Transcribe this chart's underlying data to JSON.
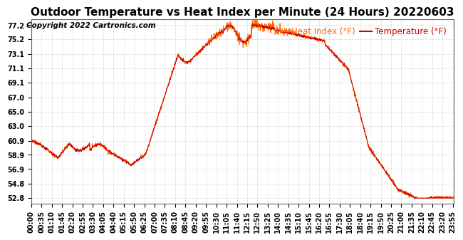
{
  "title": "Outdoor Temperature vs Heat Index per Minute (24 Hours) 20220603",
  "copyright": "Copyright 2022 Cartronics.com",
  "legend_heat_index": "Heat Index (°F)",
  "legend_temperature": "Temperature (°F)",
  "heat_index_color": "#ff6600",
  "line_color": "#cc0000",
  "background_color": "#ffffff",
  "grid_color": "#cccccc",
  "yticks": [
    52.8,
    54.8,
    56.9,
    58.9,
    60.9,
    63.0,
    65.0,
    67.0,
    69.1,
    71.1,
    73.1,
    75.2,
    77.2
  ],
  "ymin": 52.0,
  "ymax": 78.0,
  "title_fontsize": 11,
  "copyright_fontsize": 7.5,
  "legend_fontsize": 8.5,
  "tick_fontsize": 7,
  "xtick_labels": [
    "00:00",
    "00:35",
    "01:10",
    "01:45",
    "02:20",
    "02:55",
    "03:30",
    "04:05",
    "04:40",
    "05:15",
    "05:50",
    "06:25",
    "07:00",
    "07:35",
    "08:10",
    "08:45",
    "09:20",
    "09:55",
    "10:30",
    "11:05",
    "11:40",
    "12:15",
    "12:50",
    "13:25",
    "14:00",
    "14:35",
    "15:10",
    "15:45",
    "16:20",
    "16:55",
    "17:30",
    "18:05",
    "18:40",
    "19:15",
    "19:50",
    "20:25",
    "21:00",
    "21:35",
    "22:10",
    "22:45",
    "23:20",
    "23:55"
  ]
}
